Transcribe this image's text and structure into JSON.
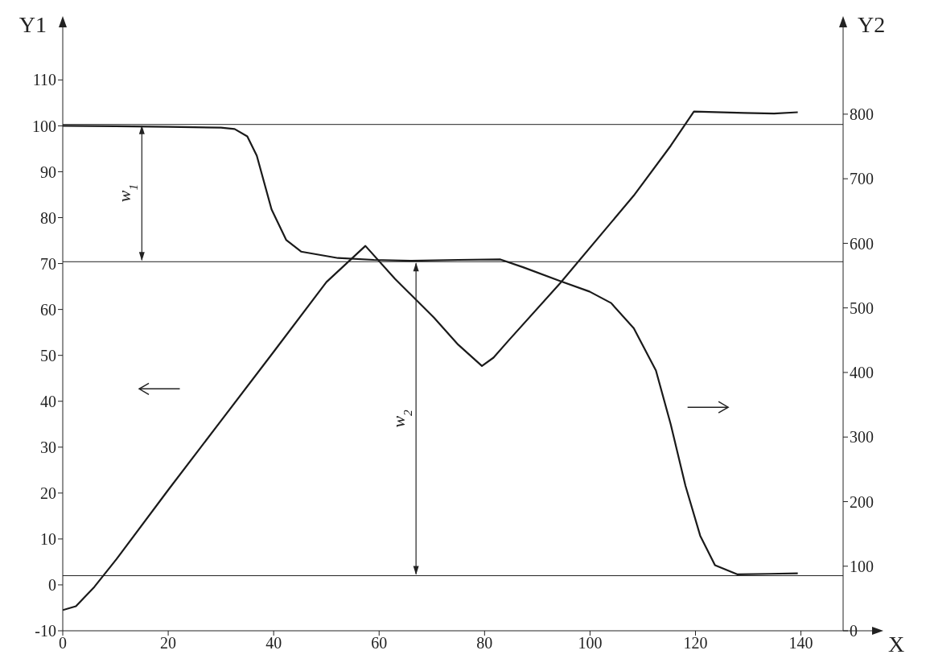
{
  "chart_data": {
    "type": "line",
    "xlabel": "X",
    "ylabel": "Y1",
    "y2label": "Y2",
    "xlim": [
      0,
      148
    ],
    "xticks": [
      0,
      20,
      40,
      60,
      80,
      100,
      120,
      140
    ],
    "ylim": [
      -10,
      119
    ],
    "yticks": [
      -10,
      0,
      10,
      20,
      30,
      40,
      50,
      60,
      70,
      80,
      90,
      100,
      110
    ],
    "y2lim": [
      0,
      917
    ],
    "y2ticks": [
      0,
      100,
      200,
      300,
      400,
      500,
      600,
      700,
      800
    ],
    "marker": "none",
    "line_style": "solid",
    "series": [
      {
        "color": "#1a1a1a",
        "x": [
          0,
          10,
          20,
          30,
          32.6,
          35,
          36.8,
          39.6,
          42.4,
          45.2,
          52.2,
          59,
          66.2,
          75,
          83,
          87.3,
          94.3,
          99.9,
          104,
          108.3,
          112.5,
          115.3,
          118.1,
          120.9,
          123.7,
          127.9,
          134,
          139.4
        ],
        "values": [
          100,
          99.9,
          99.8,
          99.6,
          99.3,
          97.7,
          93.5,
          81.8,
          75.1,
          72.6,
          71.2,
          70.8,
          70.6,
          70.8,
          70.9,
          69.2,
          66.2,
          63.9,
          61.4,
          55.9,
          46.7,
          35,
          21.6,
          10.7,
          4.3,
          2.3,
          2.4,
          2.5
        ]
      },
      {
        "color": "#1a1a1a",
        "axis": "y2",
        "x": [
          0,
          2.5,
          6,
          10.2,
          20,
          30,
          40,
          50,
          57.4,
          63,
          70.4,
          75,
          79.5,
          81.7,
          84.5,
          94.3,
          108.3,
          115.3,
          119.7,
          129.3,
          134.9,
          139.4
        ],
        "values": [
          32,
          38,
          68,
          111,
          218,
          325,
          432,
          540,
          596,
          545,
          485,
          443,
          410,
          423,
          449,
          538,
          674,
          751,
          804,
          802,
          801,
          803
        ]
      }
    ],
    "ref_lines": [
      {
        "axis": "y",
        "value": 100.3
      },
      {
        "axis": "y",
        "value": 70.4
      },
      {
        "axis": "y",
        "value": 2
      }
    ],
    "annotations": [
      "w$_{1}$",
      "w$_{2}$"
    ]
  }
}
